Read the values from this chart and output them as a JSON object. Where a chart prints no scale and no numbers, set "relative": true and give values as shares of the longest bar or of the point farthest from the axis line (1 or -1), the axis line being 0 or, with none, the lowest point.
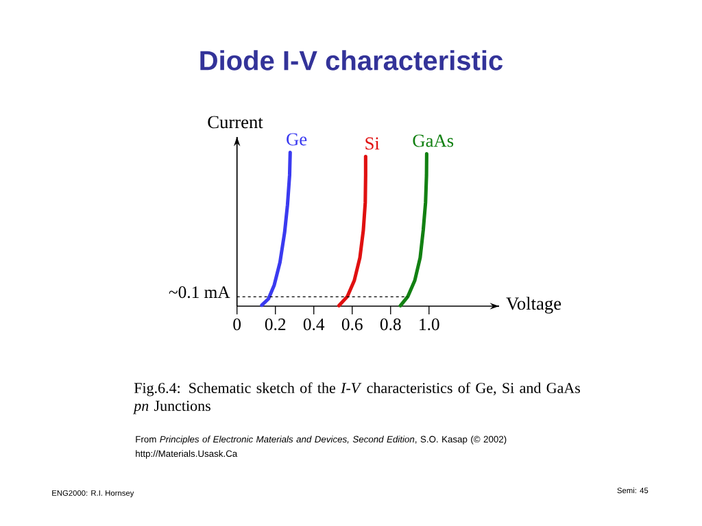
{
  "chart_data": {
    "type": "line",
    "title": "Diode I-V characteristic",
    "xlabel": "Voltage",
    "ylabel": "Current",
    "relative": true,
    "tick_labels": "x",
    "xlim": [
      0,
      1.365
    ],
    "xticks": [
      0,
      0.2,
      0.4,
      0.6,
      0.8,
      {
        "value": 1,
        "label": "1.0"
      }
    ],
    "series": [
      {
        "name": "Ge",
        "color": "#3a3af0",
        "x": [
          0.129,
          0.164,
          0.194,
          0.224,
          0.248,
          0.263,
          0.274,
          0.277
        ],
        "values": [
          0.006,
          0.048,
          0.137,
          0.286,
          0.479,
          0.658,
          0.851,
          1.0
        ]
      },
      {
        "name": "Si",
        "color": "#e01010",
        "x": [
          0.531,
          0.575,
          0.611,
          0.64,
          0.658,
          0.668,
          0.67,
          0.67
        ],
        "values": [
          0.003,
          0.063,
          0.167,
          0.315,
          0.494,
          0.673,
          0.851,
          0.973
        ]
      },
      {
        "name": "GaAs",
        "color": "#128012",
        "x": [
          0.851,
          0.89,
          0.926,
          0.954,
          0.97,
          0.982,
          0.987,
          0.988
        ],
        "values": [
          0.003,
          0.063,
          0.167,
          0.315,
          0.494,
          0.673,
          0.851,
          0.991
        ]
      }
    ],
    "ref_lines": [
      {
        "axis": "y",
        "value": 0.061,
        "label": "~0.1 mA",
        "color": "#000000",
        "line_style": "dashed"
      }
    ],
    "annotations": [
      "Fig.6.4: Schematic sketch of the *I-V* characteristics of Ge, Si and GaAs *pn* Junctions",
      "From *Principles of Electronic Materials and Devices, Second Edition*, S.O. Kasap (© 2002)",
      "http://Materials.Usask.Ca",
      "ENG2000: R.I. Hornsey",
      "Semi: 45"
    ]
  }
}
